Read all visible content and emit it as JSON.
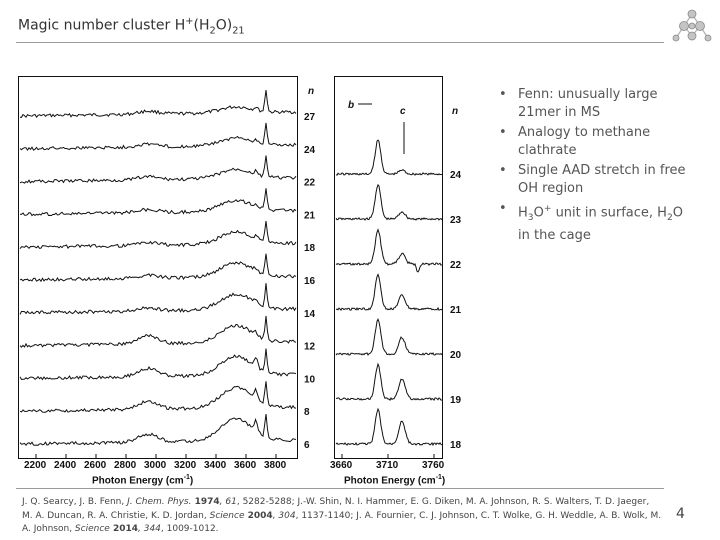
{
  "title": {
    "prefix": "Magic number cluster H",
    "sup": "+",
    "mid1": "(H",
    "sub1": "2",
    "mid2": "O)",
    "sub2": "21"
  },
  "left_panel": {
    "n_header": "n",
    "n_labels": [
      "27",
      "24",
      "22",
      "21",
      "18",
      "16",
      "14",
      "12",
      "10",
      "8",
      "6"
    ],
    "x_ticks": [
      "2200",
      "2400",
      "2600",
      "2800",
      "3000",
      "3200",
      "3400",
      "3600",
      "3800"
    ],
    "x_label_main": "Photon Energy (cm",
    "x_label_sup": "-1",
    "x_label_end": ")"
  },
  "right_panel": {
    "n_header": "n",
    "peak_b": "b",
    "peak_c": "c",
    "n_labels": [
      "24",
      "23",
      "22",
      "21",
      "20",
      "19",
      "18"
    ],
    "x_ticks": [
      "3660",
      "3710",
      "3760"
    ],
    "x_label_main": "Photon Energy (cm",
    "x_label_sup": "-1",
    "x_label_end": ")"
  },
  "bullets": {
    "b1": "Fenn: unusually large 21mer in MS",
    "b2": "Analogy to methane clathrate",
    "b3": "Single AAD stretch in free OH region",
    "b4_h": "H",
    "b4_sub": "3",
    "b4_o": "O",
    "b4_sup": "+",
    "b4_mid": " unit in surface, H",
    "b4_sub2": "2",
    "b4_end": "O in the cage"
  },
  "refs": {
    "r1": "J. Q. Searcy, J. B. Fenn, ",
    "r1_journal": "J. Chem. Phys.",
    "r1_year": " 1974",
    "r1_vol": ", 61",
    "r1_pages": ", 5282-5288; J.-W. Shin, N. I. Hammer, E. G. Diken, M. A. Johnson, R. S. Walters, T. D. Jaeger, M. A. Duncan, R. A. Christie, K. D. Jordan, ",
    "r2_journal": "Science",
    "r2_year": " 2004",
    "r2_vol": ", 304",
    "r2_pages": ", 1137-1140; J. A. Fournier, C. J. Johnson, C. T. Wolke, G. H. Weddle, A. B. Wolk, M. A. Johnson, ",
    "r3_journal": "Science",
    "r3_year": " 2014",
    "r3_vol": ", 344",
    "r3_pages": ", 1009-1012."
  },
  "page_number": "4",
  "colors": {
    "trace": "#111111",
    "rule": "#9a9a9a",
    "bullet_text": "#555555"
  },
  "icons": {
    "logo": "molecule-cluster-logo"
  }
}
